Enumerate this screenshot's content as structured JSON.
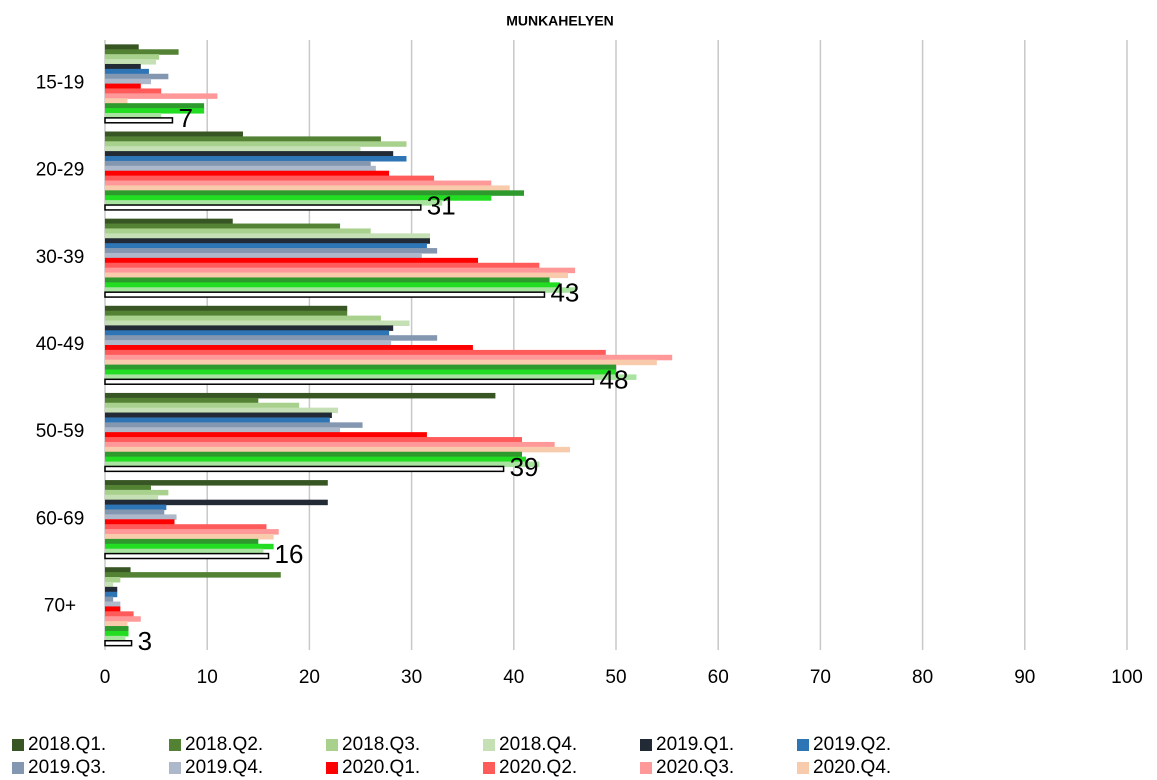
{
  "chart_data": {
    "type": "barh",
    "title": "MUNKAHELYEN",
    "categories": [
      "15-19",
      "20-29",
      "30-39",
      "40-49",
      "50-59",
      "60-69",
      "70+"
    ],
    "xlim": [
      0,
      100
    ],
    "xticks": [
      0,
      10,
      20,
      30,
      40,
      50,
      60,
      70,
      80,
      90,
      100
    ],
    "grid": true,
    "legend": "bottom",
    "series": [
      {
        "name": "2018.Q1.",
        "color": "#375623",
        "values": [
          3.3,
          13.5,
          12.5,
          23.7,
          38.2,
          21.8,
          2.5
        ]
      },
      {
        "name": "2018.Q2.",
        "color": "#548235",
        "values": [
          7.2,
          27,
          23,
          23.7,
          15,
          4.5,
          17.2
        ]
      },
      {
        "name": "2018.Q3.",
        "color": "#a9d18e",
        "values": [
          5.3,
          29.5,
          26,
          27,
          19,
          6.2,
          1.5
        ]
      },
      {
        "name": "2018.Q4.",
        "color": "#c5e0b4",
        "values": [
          5,
          25,
          31.8,
          29.8,
          22.8,
          5.2,
          0.8
        ]
      },
      {
        "name": "2019.Q1.",
        "color": "#222a35",
        "values": [
          3.5,
          28.2,
          31.8,
          28.2,
          22.2,
          21.8,
          1.2
        ]
      },
      {
        "name": "2019.Q2.",
        "color": "#2e75b6",
        "values": [
          4.3,
          29.5,
          31.5,
          27.8,
          22,
          6,
          1.2
        ]
      },
      {
        "name": "2019.Q3.",
        "color": "#8497b0",
        "values": [
          6.2,
          26,
          32.5,
          32.5,
          25.2,
          5.8,
          0.8
        ]
      },
      {
        "name": "2019.Q4.",
        "color": "#adb9ca",
        "values": [
          4.5,
          26.5,
          31,
          28,
          23,
          7,
          1.5
        ]
      },
      {
        "name": "2020.Q1.",
        "color": "#ff0000",
        "values": [
          3.5,
          27.8,
          36.5,
          36,
          31.5,
          6.8,
          1.5
        ]
      },
      {
        "name": "2020.Q2.",
        "color": "#ff5b5b",
        "values": [
          5.5,
          32.2,
          42.5,
          49,
          40.8,
          15.8,
          2.8
        ]
      },
      {
        "name": "2020.Q3.",
        "color": "#ff9999",
        "values": [
          11,
          37.8,
          46,
          55.5,
          44,
          17,
          3.5
        ]
      },
      {
        "name": "2020.Q4.",
        "color": "#f8cbad",
        "values": [
          2.2,
          39.6,
          45.3,
          54,
          45.5,
          16.5,
          2.2
        ]
      },
      {
        "color": "#2e9a2e",
        "values": [
          9.7,
          41,
          43.5,
          50,
          40.8,
          15,
          2.3
        ]
      },
      {
        "color": "#22dd22",
        "values": [
          9.7,
          37.8,
          44.5,
          50,
          41.2,
          16.5,
          2.3
        ]
      },
      {
        "color": "#a8e4a0",
        "values": [
          5.5,
          33,
          46,
          52,
          42.5,
          15.5,
          2
        ]
      },
      {
        "color": "#ffffff",
        "edgecolor": "#000000",
        "values": [
          6.6,
          30.9,
          43,
          47.8,
          39,
          16,
          2.6
        ],
        "value_labels": [
          "7",
          "31",
          "43",
          "48",
          "39",
          "16",
          "3"
        ]
      }
    ]
  }
}
